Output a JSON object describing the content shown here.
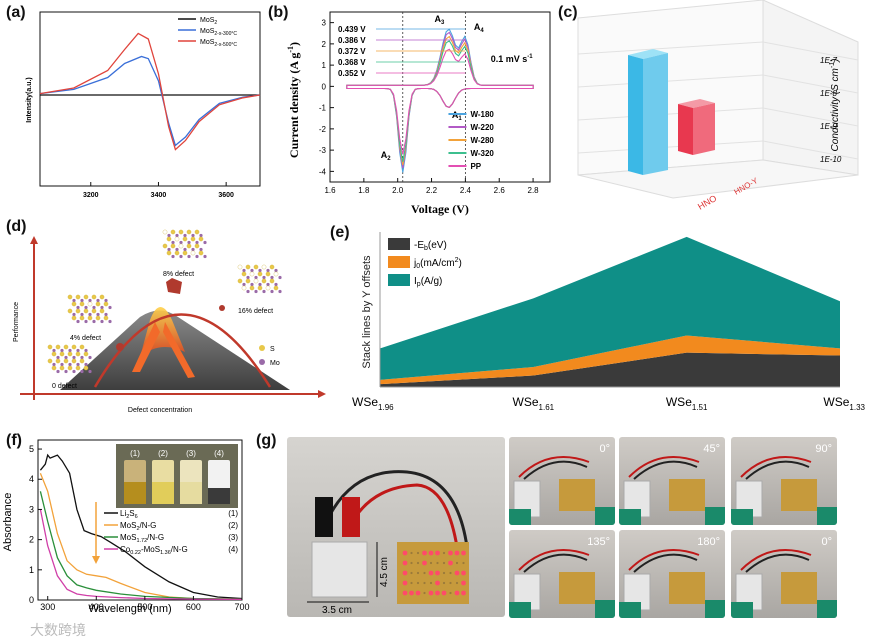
{
  "panels": {
    "a": {
      "label": "(a)",
      "chart_data": {
        "type": "line",
        "xlim": [
          3050,
          3700
        ],
        "xticks": [
          3200,
          3400,
          3600
        ],
        "ylabel": "Intensity(a.u.)",
        "legend": [
          {
            "name": "MoS",
            "sub": "2",
            "color": "#111111"
          },
          {
            "name": "MoS",
            "sub": "2-x-300°C",
            "color": "#3a6fd8"
          },
          {
            "name": "MoS",
            "sub": "2-x-500°C",
            "color": "#e0443c"
          }
        ],
        "series": [
          {
            "name": "MoS2",
            "color": "#111111",
            "x": [
              3050,
              3200,
              3350,
              3450,
              3600,
              3700
            ],
            "y": [
              0,
              0,
              0,
              0,
              0,
              0
            ]
          },
          {
            "name": "MoS2-x-300°C",
            "color": "#3a6fd8",
            "x": [
              3050,
              3150,
              3250,
              3300,
              3350,
              3370,
              3400,
              3430,
              3450,
              3480,
              3520,
              3580,
              3650,
              3700
            ],
            "y": [
              0.02,
              0.08,
              0.25,
              0.45,
              0.55,
              0.52,
              0.2,
              -0.4,
              -0.72,
              -0.6,
              -0.35,
              -0.12,
              -0.03,
              0
            ]
          },
          {
            "name": "MoS2-x-500°C",
            "color": "#e0443c",
            "x": [
              3050,
              3150,
              3250,
              3300,
              3340,
              3370,
              3400,
              3430,
              3450,
              3480,
              3520,
              3580,
              3650,
              3700
            ],
            "y": [
              0.02,
              0.1,
              0.35,
              0.65,
              0.88,
              0.8,
              0.3,
              -0.45,
              -0.78,
              -0.65,
              -0.38,
              -0.14,
              -0.04,
              0
            ]
          }
        ]
      }
    },
    "b": {
      "label": "(b)",
      "chart_data": {
        "type": "line",
        "xlabel": "Voltage (V)",
        "ylabel": "Current density (A g",
        "ylabel_sup": "-1",
        "ylabel_end": ")",
        "xlim": [
          1.6,
          2.9
        ],
        "ylim": [
          -4.5,
          3.5
        ],
        "xticks": [
          "1.6",
          "1.8",
          "2.0",
          "2.2",
          "2.4",
          "2.6",
          "2.8"
        ],
        "yticks": [
          "-4",
          "-3",
          "-2",
          "-1",
          "0",
          "1",
          "2",
          "3"
        ],
        "peak_labels": [
          "0.439 V",
          "0.386 V",
          "0.372 V",
          "0.368 V",
          "0.352 V"
        ],
        "annotations": {
          "A1": "A",
          "A1s": "1",
          "A2": "A",
          "A2s": "2",
          "A3": "A",
          "A3s": "3",
          "A4": "A",
          "A4s": "4",
          "rate": "0.1 mV s",
          "rate_sup": "-1"
        },
        "legend": [
          "W-180",
          "W-220",
          "W-280",
          "W-320",
          "PP"
        ],
        "series": [
          {
            "name": "W-180",
            "color": "#4aa3df",
            "anod": 2.65,
            "cath": -3.95
          },
          {
            "name": "W-220",
            "color": "#b25ac6",
            "anod": 2.5,
            "cath": -3.75
          },
          {
            "name": "W-280",
            "color": "#f2a23a",
            "anod": 2.3,
            "cath": -3.6
          },
          {
            "name": "W-320",
            "color": "#3cbf8e",
            "anod": 2.1,
            "cath": -3.45
          },
          {
            "name": "PP",
            "color": "#e34fb3",
            "anod": 1.7,
            "cath": -3.1
          }
        ]
      }
    },
    "c": {
      "label": "(c)",
      "chart_data": {
        "type": "bar",
        "categories": [
          "HNO",
          "HNO-Y"
        ],
        "values": [
          5e-08,
          3e-09
        ],
        "zlabel": "Conductivity (S cm",
        "zlabel_sup": "-1",
        "zlabel_end": ")",
        "zticks": [
          "1E-7",
          "1E-8",
          "1E-9",
          "1E-10"
        ],
        "colors": [
          "#3bb8e6",
          "#e8384f"
        ]
      }
    },
    "d": {
      "label": "(d)",
      "ylabel": "Performance",
      "xlabel": "Defect concentration",
      "defects": [
        "0 defect",
        "4% defect",
        "8% defect",
        "16% defect"
      ],
      "legend": [
        {
          "name": "S",
          "color": "#e8c84a"
        },
        {
          "name": "Mo",
          "color": "#9a6aa8"
        }
      ]
    },
    "e": {
      "label": "(e)",
      "ylabel": "Stack  lines by Y offsets",
      "chart_data": {
        "type": "area",
        "categories": [
          "WSe1.96",
          "WSe1.61",
          "WSe1.51",
          "WSe1.33"
        ],
        "tick_labels": [
          {
            "b": "WSe",
            "s": "1.96"
          },
          {
            "b": "WSe",
            "s": "1.61"
          },
          {
            "b": "WSe",
            "s": "1.51"
          },
          {
            "b": "WSe",
            "s": "1.33"
          }
        ],
        "legend": [
          {
            "t": "-E",
            "s": "b",
            "e": "(eV)",
            "color": "#3a3a3a"
          },
          {
            "t": "j",
            "s": "0",
            "e": "(mA/cm",
            "sup": "2",
            "e2": ")",
            "color": "#f28a1e"
          },
          {
            "t": "I",
            "s": "p",
            "e": "(A/g)",
            "color": "#0f8f87"
          }
        ],
        "series": [
          {
            "name": "-Eb(eV)",
            "color": "#3a3a3a",
            "values": [
              0.2,
              0.8,
              2.4,
              2.2
            ]
          },
          {
            "name": "j0(mA/cm2)",
            "color": "#f28a1e",
            "values": [
              0.3,
              0.6,
              1.2,
              0.5
            ]
          },
          {
            "name": "Ip(A/g)",
            "color": "#0f8f87",
            "values": [
              2.2,
              4.8,
              6.9,
              3.3
            ]
          }
        ]
      }
    },
    "f": {
      "label": "(f)",
      "chart_data": {
        "type": "line",
        "xlabel": "Wavelength (nm)",
        "ylabel": "Absorbance",
        "xlim": [
          280,
          700
        ],
        "ylim": [
          0,
          5.3
        ],
        "xticks": [
          "300",
          "400",
          "500",
          "600",
          "700"
        ],
        "yticks": [
          "0",
          "1",
          "2",
          "3",
          "4",
          "5"
        ],
        "vials": [
          "(1)",
          "(2)",
          "(3)",
          "(4)"
        ],
        "legend": [
          {
            "p": "Li",
            "s": "2",
            "m": "S",
            "s2": "6",
            "e": "",
            "n": "(1)",
            "color": "#111111"
          },
          {
            "p": "MoS",
            "s": "2",
            "m": "/N-G",
            "s2": "",
            "e": "",
            "n": "(2)",
            "color": "#f2a23a"
          },
          {
            "p": "MoS",
            "s": "1.72",
            "m": "/N-G",
            "s2": "",
            "e": "",
            "n": "(3)",
            "color": "#2a8f3a"
          },
          {
            "p": "Co",
            "s": "0.22",
            "m": "-MoS",
            "s2": "1.36",
            "e": "/N-G",
            "n": "(4)",
            "color": "#d03fa8"
          }
        ],
        "series": [
          {
            "name": "Li2S6",
            "color": "#111111",
            "x": [
              285,
              295,
              300,
              305,
              320,
              330,
              345,
              360,
              375,
              390,
              410,
              430,
              460,
              500,
              550,
              600,
              650,
              700
            ],
            "y": [
              4.3,
              4.5,
              4.8,
              4.7,
              4.8,
              4.6,
              4.2,
              3.0,
              2.3,
              2.2,
              2.1,
              1.9,
              1.6,
              1.1,
              0.6,
              0.25,
              0.1,
              0.05
            ]
          },
          {
            "name": "MoS2/N-G",
            "color": "#f2a23a",
            "x": [
              285,
              300,
              320,
              340,
              360,
              380,
              400,
              420,
              450,
              500,
              550,
              600,
              700
            ],
            "y": [
              4.2,
              3.6,
              2.2,
              1.3,
              1.0,
              0.85,
              0.8,
              0.75,
              0.55,
              0.25,
              0.1,
              0.05,
              0.03
            ]
          },
          {
            "name": "MoS1.72/N-G",
            "color": "#2a8f3a",
            "x": [
              285,
              300,
              320,
              340,
              360,
              380,
              400,
              450,
              500,
              600,
              700
            ],
            "y": [
              3.6,
              2.6,
              1.4,
              0.8,
              0.5,
              0.4,
              0.32,
              0.2,
              0.12,
              0.05,
              0.03
            ]
          },
          {
            "name": "Co0.22-MoS1.36/N-G",
            "color": "#d03fa8",
            "x": [
              285,
              300,
              320,
              340,
              360,
              380,
              400,
              450,
              500,
              600,
              700
            ],
            "y": [
              3.0,
              1.8,
              0.8,
              0.35,
              0.2,
              0.15,
              0.12,
              0.08,
              0.05,
              0.03,
              0.02
            ]
          }
        ]
      }
    },
    "g": {
      "label": "(g)",
      "dims": [
        "4.5 cm",
        "3.5 cm"
      ],
      "angles": [
        "0°",
        "45°",
        "90°",
        "135°",
        "180°",
        "0°"
      ]
    }
  },
  "watermark": "大数跨境"
}
